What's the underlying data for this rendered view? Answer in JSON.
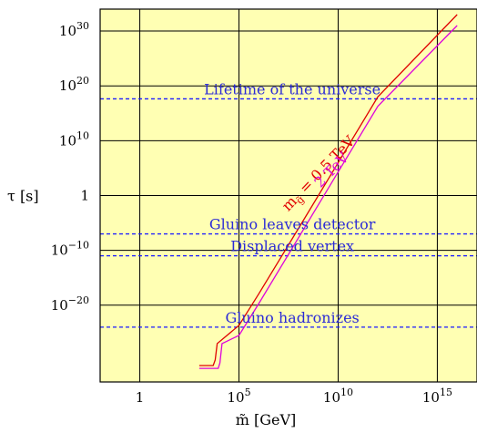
{
  "chart_data": {
    "type": "line",
    "x_scale": "log",
    "y_scale": "log",
    "xlabel": "m̃ [GeV]",
    "ylabel": "τ [s]",
    "xlim": [
      0.01,
      1e+17
    ],
    "ylim": [
      1e-34,
      1e+34
    ],
    "x_ticks": [
      {
        "value": 1,
        "label": "1"
      },
      {
        "value": 100000.0,
        "label": "10",
        "exp": "5"
      },
      {
        "value": 10000000000.0,
        "label": "10",
        "exp": "10"
      },
      {
        "value": 1000000000000000.0,
        "label": "10",
        "exp": "15"
      }
    ],
    "y_ticks": [
      {
        "value": 1e+30,
        "label": "10",
        "exp": "30"
      },
      {
        "value": 1e+20,
        "label": "10",
        "exp": "20"
      },
      {
        "value": 10000000000.0,
        "label": "10",
        "exp": "10"
      },
      {
        "value": 1,
        "label": "1"
      },
      {
        "value": 1e-10,
        "label": "10",
        "exp": "−10"
      },
      {
        "value": 1e-20,
        "label": "10",
        "exp": "−20"
      }
    ],
    "grid": true,
    "background_color": "#ffffb3",
    "series": [
      {
        "name": "m_g̃ = 0.5 TeV",
        "color": "#e00000",
        "points": [
          [
            1000,
            1e-31
          ],
          [
            5000,
            1e-31
          ],
          [
            6300,
            1e-30
          ],
          [
            8000,
            1e-27
          ],
          [
            100000.0,
            2e-24
          ],
          [
            1000000.0,
            1.2e-18
          ],
          [
            100000000.0,
            1e-06
          ],
          [
            10000000000.0,
            1000000.0
          ],
          [
            1000000000000.0,
            1e+18
          ],
          [
            1e+16,
            1e+33
          ]
        ]
      },
      {
        "name": "2 TeV",
        "color": "#dd00dd",
        "points": [
          [
            1000,
            3e-32
          ],
          [
            9000,
            3e-32
          ],
          [
            11000,
            3e-31
          ],
          [
            14000,
            1e-27
          ],
          [
            100000.0,
            3e-26
          ],
          [
            1000000.0,
            2e-20
          ],
          [
            100000000.0,
            2e-08
          ],
          [
            10000000000.0,
            20000.0
          ],
          [
            1000000000000.0,
            2e+16
          ],
          [
            1e+16,
            1e+31
          ]
        ]
      }
    ],
    "reference_lines": [
      {
        "label": "Lifetime of the universe",
        "y": 4.3e+17,
        "color": "#1a1aff"
      },
      {
        "label": "Gluino leaves detector",
        "y": 1e-07,
        "color": "#1a1aff"
      },
      {
        "label": "Displaced vertex",
        "y": 1e-11,
        "color": "#1a1aff"
      },
      {
        "label": "Gluino hadronizes",
        "y": 1e-24,
        "color": "#1a1aff"
      }
    ],
    "series_labels": [
      {
        "text": "m",
        "sub": "g̃",
        "suffix": " = 0.5 TeV",
        "color": "#e00000"
      },
      {
        "text": "2 TeV",
        "color": "#dd00dd"
      }
    ]
  }
}
